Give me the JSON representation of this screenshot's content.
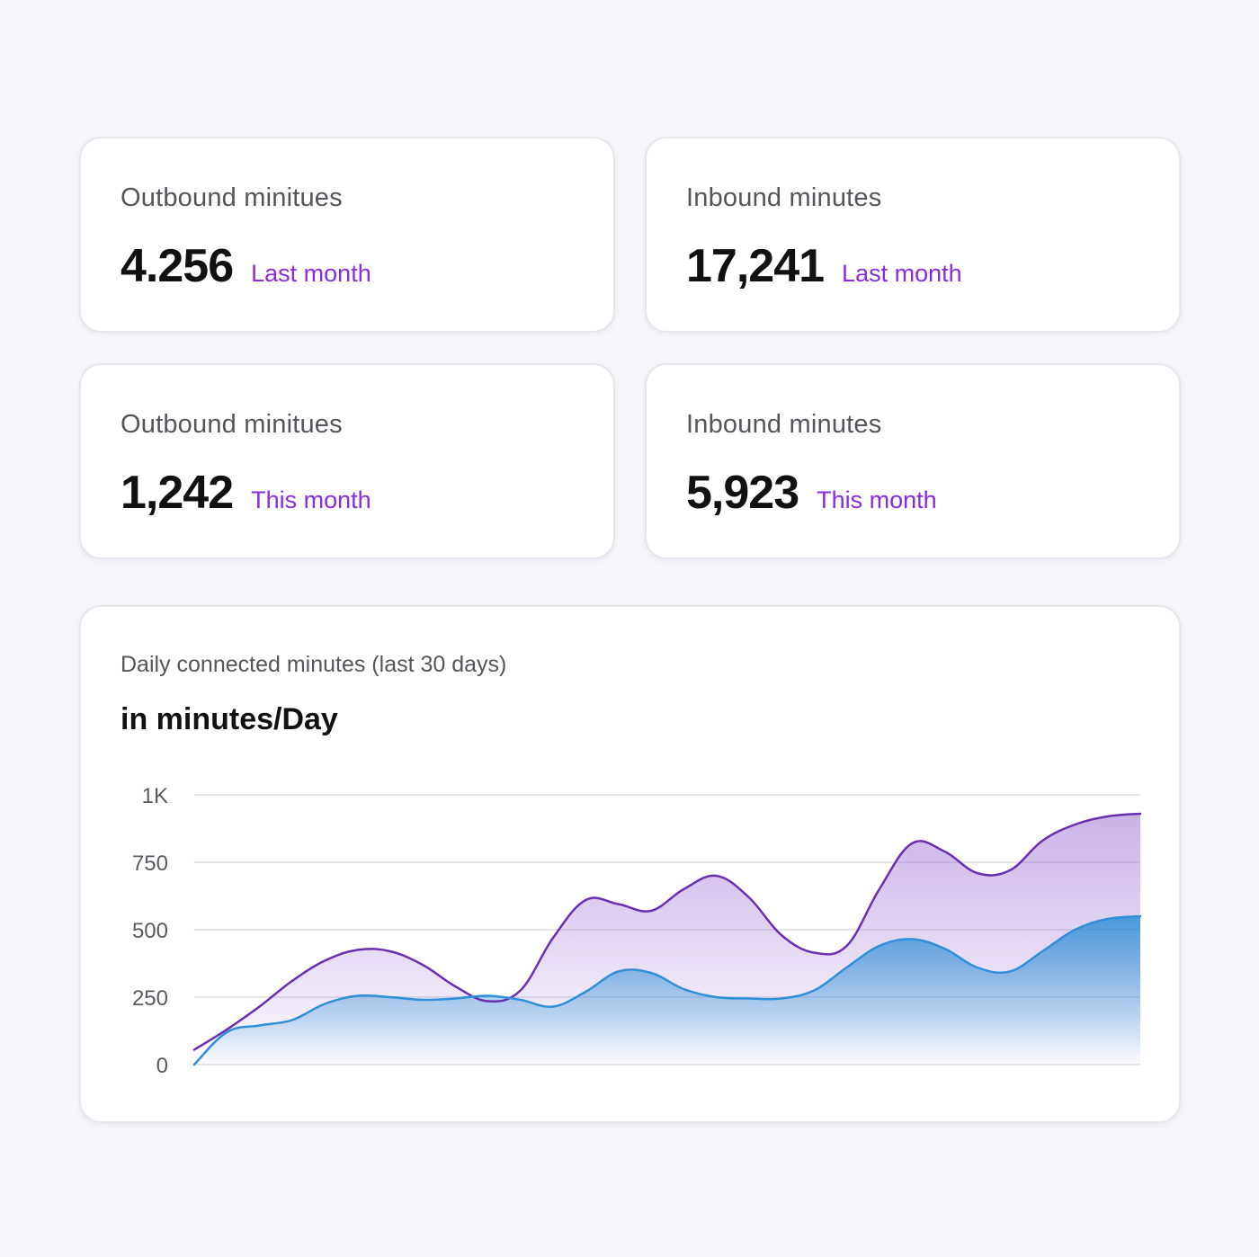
{
  "cards": [
    {
      "label": "Outbound minitues",
      "value": "4.256",
      "period": "Last month"
    },
    {
      "label": "Inbound minutes",
      "value": "17,241",
      "period": "Last month"
    },
    {
      "label": "Outbound minitues",
      "value": "1,242",
      "period": "This month"
    },
    {
      "label": "Inbound minutes",
      "value": "5,923",
      "period": "This month"
    }
  ],
  "colors": {
    "accent": "#8a2be2",
    "purple_line": "#6a2fb0",
    "blue_line": "#2f8fd8",
    "background": "#f6f6fb"
  },
  "chart": {
    "label": "Daily connected minutes (last 30 days)",
    "unit": "in minutes/Day"
  },
  "chart_data": {
    "type": "area",
    "title": "Daily connected minutes (last 30 days)",
    "ylabel": "in minutes/Day",
    "ylim": [
      0,
      1000
    ],
    "yticks": [
      0,
      250,
      500,
      750,
      1000
    ],
    "ytick_labels": [
      "0",
      "250",
      "500",
      "750",
      "1K"
    ],
    "grid": true,
    "x": [
      0,
      1,
      2,
      3,
      4,
      5,
      6,
      7,
      8,
      9,
      10,
      11,
      12,
      13,
      14,
      15,
      16,
      17,
      18,
      19,
      20,
      21,
      22,
      23,
      24,
      25,
      26,
      27,
      28,
      29
    ],
    "series": [
      {
        "color": "#6a2fb0",
        "values": [
          55,
          130,
          215,
          310,
          385,
          425,
          420,
          370,
          290,
          235,
          275,
          470,
          610,
          595,
          570,
          650,
          700,
          620,
          480,
          415,
          440,
          650,
          820,
          790,
          710,
          720,
          830,
          890,
          920,
          930
        ]
      },
      {
        "color": "#2f8fd8",
        "values": [
          0,
          120,
          145,
          165,
          225,
          255,
          250,
          240,
          245,
          255,
          240,
          215,
          270,
          345,
          340,
          280,
          250,
          245,
          245,
          275,
          360,
          440,
          465,
          430,
          360,
          345,
          420,
          500,
          540,
          550
        ]
      }
    ]
  }
}
